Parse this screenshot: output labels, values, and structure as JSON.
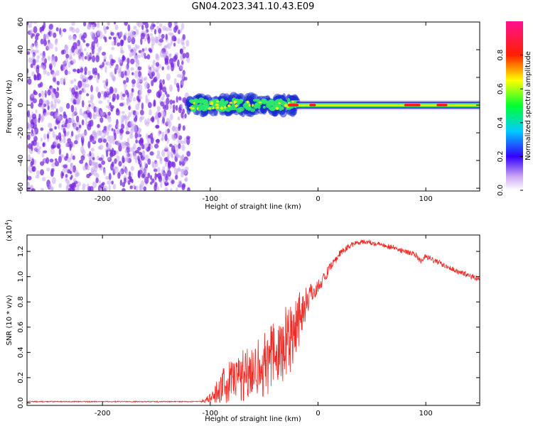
{
  "title": "GN04.2023.341.10.43.E09",
  "colors": {
    "axis": "#000000",
    "snr_line": "#ee2a24",
    "scatter_purple": "#7a2be0",
    "scatter_light": "#c8a8f0",
    "band_core": "#ff2020",
    "band_mid": "#2ee86a",
    "band_edge": "#1a2bd0"
  },
  "chart_data": [
    {
      "type": "heatmap",
      "xlabel": "Height of straight line (km)",
      "ylabel": "Frequency (Hz)",
      "xlim": [
        -270,
        150
      ],
      "ylim": [
        -62,
        60
      ],
      "xticks": [
        -200,
        -100,
        0,
        100
      ],
      "yticks": [
        60,
        40,
        20,
        0,
        -20,
        -40,
        -60
      ],
      "grid": false,
      "regions": [
        {
          "from_km": -270,
          "to_km": -120,
          "pattern": "scattered noise over full frequency range",
          "amplitude": 0.2
        },
        {
          "from_km": -120,
          "to_km": -20,
          "pattern": "noisy band centred near 0 Hz",
          "amplitude": 0.5
        },
        {
          "from_km": -20,
          "to_km": 150,
          "pattern": "narrow band near 0 Hz",
          "amplitude": 0.8
        }
      ],
      "colorbar": {
        "label": "Normalized spectral amplitude",
        "range": [
          0,
          1
        ],
        "ticks": [
          0.0,
          0.2,
          0.4,
          0.6,
          0.8
        ],
        "tick_labels": [
          "0.0",
          "0.2",
          "0.4",
          "0.6",
          "0.8"
        ]
      }
    },
    {
      "type": "line",
      "xlabel": "Height of straight line (km)",
      "ylabel": "SNR (10 * v/v)",
      "multiplier_label": "(x10",
      "multiplier_exp": "4",
      "xlim": [
        -270,
        150
      ],
      "ylim": [
        -0.02,
        1.33
      ],
      "xticks": [
        -200,
        -100,
        0,
        100
      ],
      "yticks": [
        0.0,
        0.2,
        0.4,
        0.6,
        0.8,
        1.0,
        1.2
      ],
      "ytick_labels": [
        "0.0",
        "0.2",
        "0.4",
        "0.6",
        "0.8",
        "1.0",
        "1.2"
      ],
      "grid": false,
      "series": [
        {
          "x": [
            -270,
            -200,
            -150,
            -110,
            -100,
            -90,
            -80,
            -70,
            -60,
            -50,
            -40,
            -30,
            -25,
            -20,
            -15,
            -10,
            -5,
            0,
            10,
            20,
            30,
            40,
            50,
            60,
            70,
            80,
            90,
            95,
            100,
            110,
            120,
            130,
            140,
            150
          ],
          "y": [
            0.01,
            0.01,
            0.01,
            0.01,
            0.03,
            0.12,
            0.18,
            0.22,
            0.28,
            0.3,
            0.38,
            0.45,
            0.55,
            0.65,
            0.72,
            0.82,
            0.88,
            0.92,
            1.05,
            1.18,
            1.25,
            1.28,
            1.27,
            1.25,
            1.23,
            1.2,
            1.18,
            1.12,
            1.16,
            1.12,
            1.08,
            1.04,
            1.01,
            0.98
          ],
          "noise": [
            0,
            0,
            0,
            0,
            0.04,
            0.14,
            0.18,
            0.22,
            0.24,
            0.26,
            0.3,
            0.32,
            0.3,
            0.26,
            0.2,
            0.12,
            0.08,
            0.06,
            0.04,
            0.03,
            0.02,
            0.02,
            0.02,
            0.02,
            0.02,
            0.02,
            0.02,
            0.02,
            0.02,
            0.02,
            0.02,
            0.02,
            0.02,
            0.02
          ]
        }
      ]
    }
  ]
}
